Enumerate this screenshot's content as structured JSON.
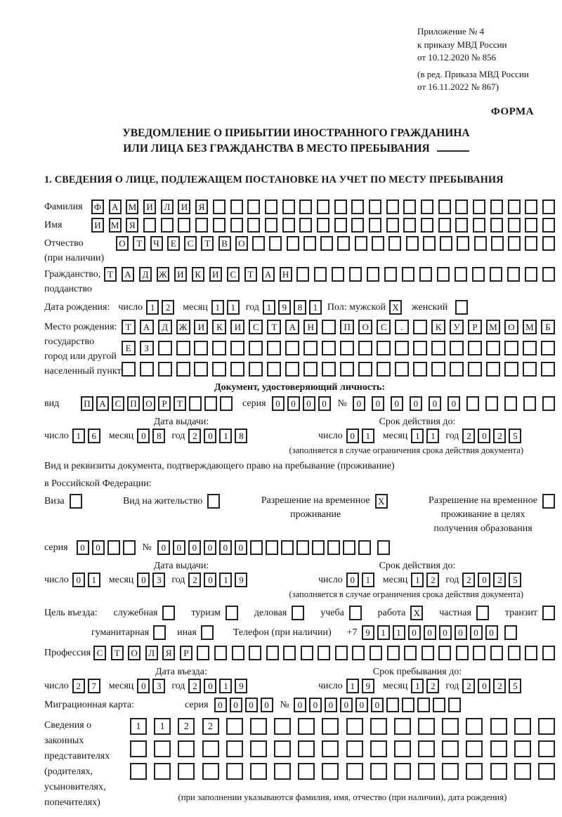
{
  "doc": {
    "annex_lines": [
      "Приложение № 4",
      "к приказу МВД России",
      "от 10.12.2020 № 856"
    ],
    "amendment_lines": [
      "(в ред. Приказа МВД России",
      "от 16.11.2022 № 867)"
    ],
    "form_label": "ФОРМА",
    "title_line1": "УВЕДОМЛЕНИЕ О ПРИБЫТИИ ИНОСТРАННОГО ГРАЖДАНИНА",
    "title_line2": "ИЛИ ЛИЦА БЕЗ ГРАЖДАНСТВА В МЕСТО ПРЕБЫВАНИЯ",
    "section1_title": "1. СВЕДЕНИЯ О ЛИЦЕ, ПОДЛЕЖАЩЕМ ПОСТАНОВКЕ НА УЧЕТ ПО МЕСТУ ПРЕБЫВАНИЯ"
  },
  "labels": {
    "day": "число",
    "month": "месяц",
    "year": "год",
    "seriya": "серия",
    "number": "№",
    "issue_date": "Дата выдачи:",
    "valid_until": "Срок действия до:",
    "restriction_note": "(заполняется в случае ограничения срока действия документа)"
  },
  "person": {
    "surname": {
      "label": "Фамилия",
      "value": "ФАМИЛИЯ",
      "length": 27
    },
    "given_name": {
      "label": "Имя",
      "value": "ИМЯ",
      "length": 27
    },
    "patronymic": {
      "label": "Отчество",
      "note": "(при наличии)",
      "value": "ОТЧЕСТВО",
      "length": 26
    },
    "citizenship": {
      "label1": "Гражданство,",
      "label2": "подданство",
      "value": "ТАДЖИКИСТАН",
      "length": 26
    },
    "birth_date_label": "Дата рождения:",
    "birth_day": {
      "value": "12",
      "length": 2
    },
    "birth_month": {
      "value": "11",
      "length": 2
    },
    "birth_year": {
      "value": "1981",
      "length": 4
    },
    "sex_male_label": "Пол: мужской",
    "sex_male": {
      "value": "X",
      "length": 1
    },
    "sex_female_label": "женский",
    "sex_female": {
      "value": "",
      "length": 1
    },
    "birth_place_label": "Место рождения:",
    "birth_place_sub1": "государство",
    "birth_place_sub2": "город или другой",
    "birth_place_sub3": "населенный пункт",
    "birth_place_row1": {
      "value": "ТАДЖИКИСТАН ПОС. КУРМОМБ",
      "length": 24
    },
    "birth_place_row2": {
      "value": "ЕЗ",
      "length": 24
    },
    "birth_place_row3": {
      "value": "",
      "length": 24
    }
  },
  "identity_doc": {
    "header": "Документ, удостоверяющий личность:",
    "type_label": "вид",
    "type": {
      "value": "ПАСПОРТ",
      "length": 10
    },
    "seriya": {
      "value": "0000",
      "length": 4
    },
    "number": {
      "value": "000000",
      "length": 11
    },
    "issue_day": {
      "value": "16",
      "length": 2
    },
    "issue_month": {
      "value": "08",
      "length": 2
    },
    "issue_year": {
      "value": "2018",
      "length": 4
    },
    "valid_day": {
      "value": "01",
      "length": 2
    },
    "valid_month": {
      "value": "11",
      "length": 2
    },
    "valid_year": {
      "value": "2025",
      "length": 4
    }
  },
  "stay_doc": {
    "intro_line1": "Вид и реквизиты документа, подтверждающего право на пребывание (проживание)",
    "intro_line2": "в Российской Федерации:",
    "visa_label": "Виза",
    "visa": {
      "value": "",
      "length": 1
    },
    "residence_label": "Вид на жительство",
    "residence": {
      "value": "",
      "length": 1
    },
    "rvp_label1": "Разрешение на временное",
    "rvp_label2": "проживание",
    "rvp": {
      "value": "X",
      "length": 1
    },
    "rvp_edu_label1": "Разрешение на временное",
    "rvp_edu_label2": "проживание в целях",
    "rvp_edu_label3": "получения образования",
    "rvp_edu": {
      "value": "",
      "length": 1
    },
    "seriya": {
      "value": "00",
      "length": 4
    },
    "number": {
      "value": "000000",
      "length": 14
    },
    "number_extra": {
      "value": "",
      "length": 1
    },
    "issue_day": {
      "value": "01",
      "length": 2
    },
    "issue_month": {
      "value": "03",
      "length": 2
    },
    "issue_year": {
      "value": "2019",
      "length": 4
    },
    "valid_day": {
      "value": "01",
      "length": 2
    },
    "valid_month": {
      "value": "12",
      "length": 2
    },
    "valid_year": {
      "value": "2025",
      "length": 4
    }
  },
  "entry": {
    "purpose_label": "Цель въезда:",
    "purposes": [
      {
        "label": "служебная",
        "box": {
          "value": "",
          "length": 1
        }
      },
      {
        "label": "туризм",
        "box": {
          "value": "",
          "length": 1
        }
      },
      {
        "label": "деловая",
        "box": {
          "value": "",
          "length": 1
        }
      },
      {
        "label": "учеба",
        "box": {
          "value": "",
          "length": 1
        }
      },
      {
        "label": "работа",
        "box": {
          "value": "X",
          "length": 1
        }
      },
      {
        "label": "частная",
        "box": {
          "value": "",
          "length": 1
        }
      },
      {
        "label": "транзит",
        "box": {
          "value": "",
          "length": 1
        }
      }
    ],
    "purposes2": [
      {
        "label": "гуманитарная",
        "box": {
          "value": "",
          "length": 1
        }
      },
      {
        "label": "иная",
        "box": {
          "value": "",
          "length": 1
        }
      }
    ],
    "phone_label": "Телефон (при наличии)",
    "phone_prefix": "+7",
    "phone": {
      "value": "911000000",
      "length": 9
    },
    "phone_extra": {
      "value": "",
      "length": 1
    },
    "profession_label": "Профессия",
    "profession": {
      "value": "СТОЛЯР",
      "length": 27
    },
    "entry_date_label": "Дата въезда:",
    "stay_until_label": "Срок пребывания до:",
    "entry_day": {
      "value": "27",
      "length": 2
    },
    "entry_month": {
      "value": "03",
      "length": 2
    },
    "entry_year": {
      "value": "2019",
      "length": 4
    },
    "until_day": {
      "value": "19",
      "length": 2
    },
    "until_month": {
      "value": "12",
      "length": 2
    },
    "until_year": {
      "value": "2025",
      "length": 4
    }
  },
  "migration_card": {
    "label": "Миграционная карта:",
    "seriya": {
      "value": "0000",
      "length": 4
    },
    "number": {
      "value": "000000",
      "length": 11
    }
  },
  "legal_reps": {
    "label_lines": [
      "Сведения о",
      "законных",
      "представителях",
      "(родителях,",
      "усыновителях,",
      "попечителях)"
    ],
    "row1": {
      "value": "1122",
      "length": 18
    },
    "row2": {
      "value": "",
      "length": 18
    },
    "row3": {
      "value": "",
      "length": 18
    },
    "note": "(при заполнении указываются фамилия, имя, отчество (при наличии), дата рождения)"
  }
}
